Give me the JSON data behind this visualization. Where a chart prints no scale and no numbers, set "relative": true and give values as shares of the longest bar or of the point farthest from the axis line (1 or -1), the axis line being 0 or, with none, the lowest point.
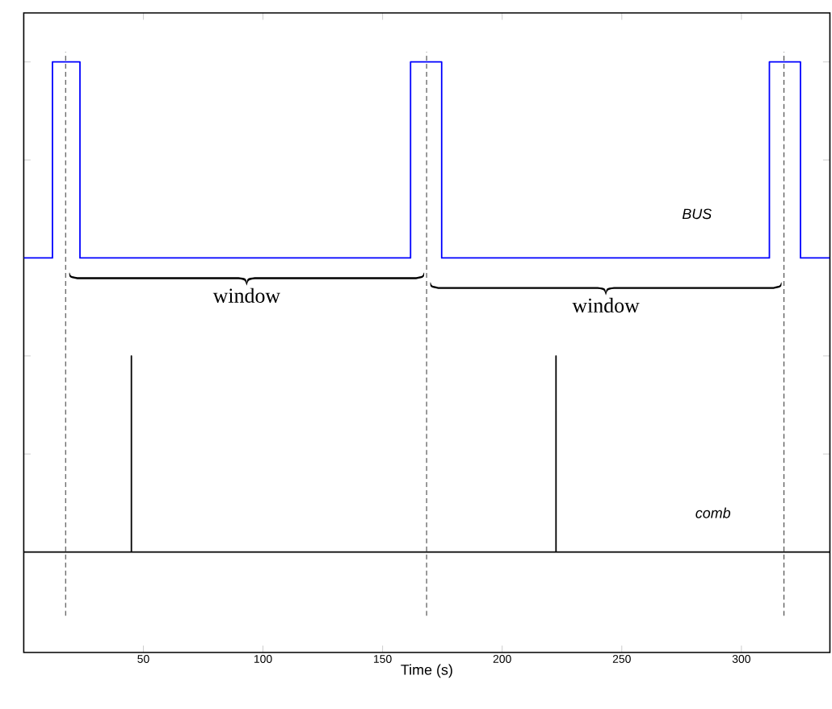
{
  "chart_data": {
    "type": "line",
    "xlabel": "Time (s)",
    "relative": true,
    "x": [
      0,
      12,
      12,
      23.5,
      23.5,
      161.7,
      161.7,
      174.7,
      174.7,
      311.7,
      311.7,
      324.7,
      324.7,
      337
    ],
    "xlim": [
      0,
      337
    ],
    "xticks": [
      50,
      100,
      150,
      200,
      250,
      300
    ],
    "series": [
      {
        "name": "BUS",
        "color": "#0000ff",
        "values": [
          0.6,
          0.6,
          1,
          1,
          0.6,
          0.6,
          1,
          1,
          0.6,
          0.6,
          1,
          1,
          0.6,
          0.6
        ]
      },
      {
        "name": "comb",
        "color": "#000000",
        "x": [
          0,
          45,
          45,
          45,
          222.5,
          222.5,
          222.5,
          337
        ],
        "values": [
          0,
          0,
          0.4,
          0,
          0,
          0.4,
          0,
          0
        ]
      }
    ],
    "ref_lines": [
      {
        "axis": "x",
        "value": 17.5,
        "line_style": "dashed",
        "color": "#333333"
      },
      {
        "axis": "x",
        "value": 168.4,
        "line_style": "dashed",
        "color": "#333333"
      },
      {
        "axis": "x",
        "value": 317.8,
        "line_style": "dashed",
        "color": "#333333"
      }
    ],
    "annotations": [
      "window",
      "window"
    ],
    "marker": "none",
    "line_style": "solid",
    "grid": false,
    "legend": false
  }
}
